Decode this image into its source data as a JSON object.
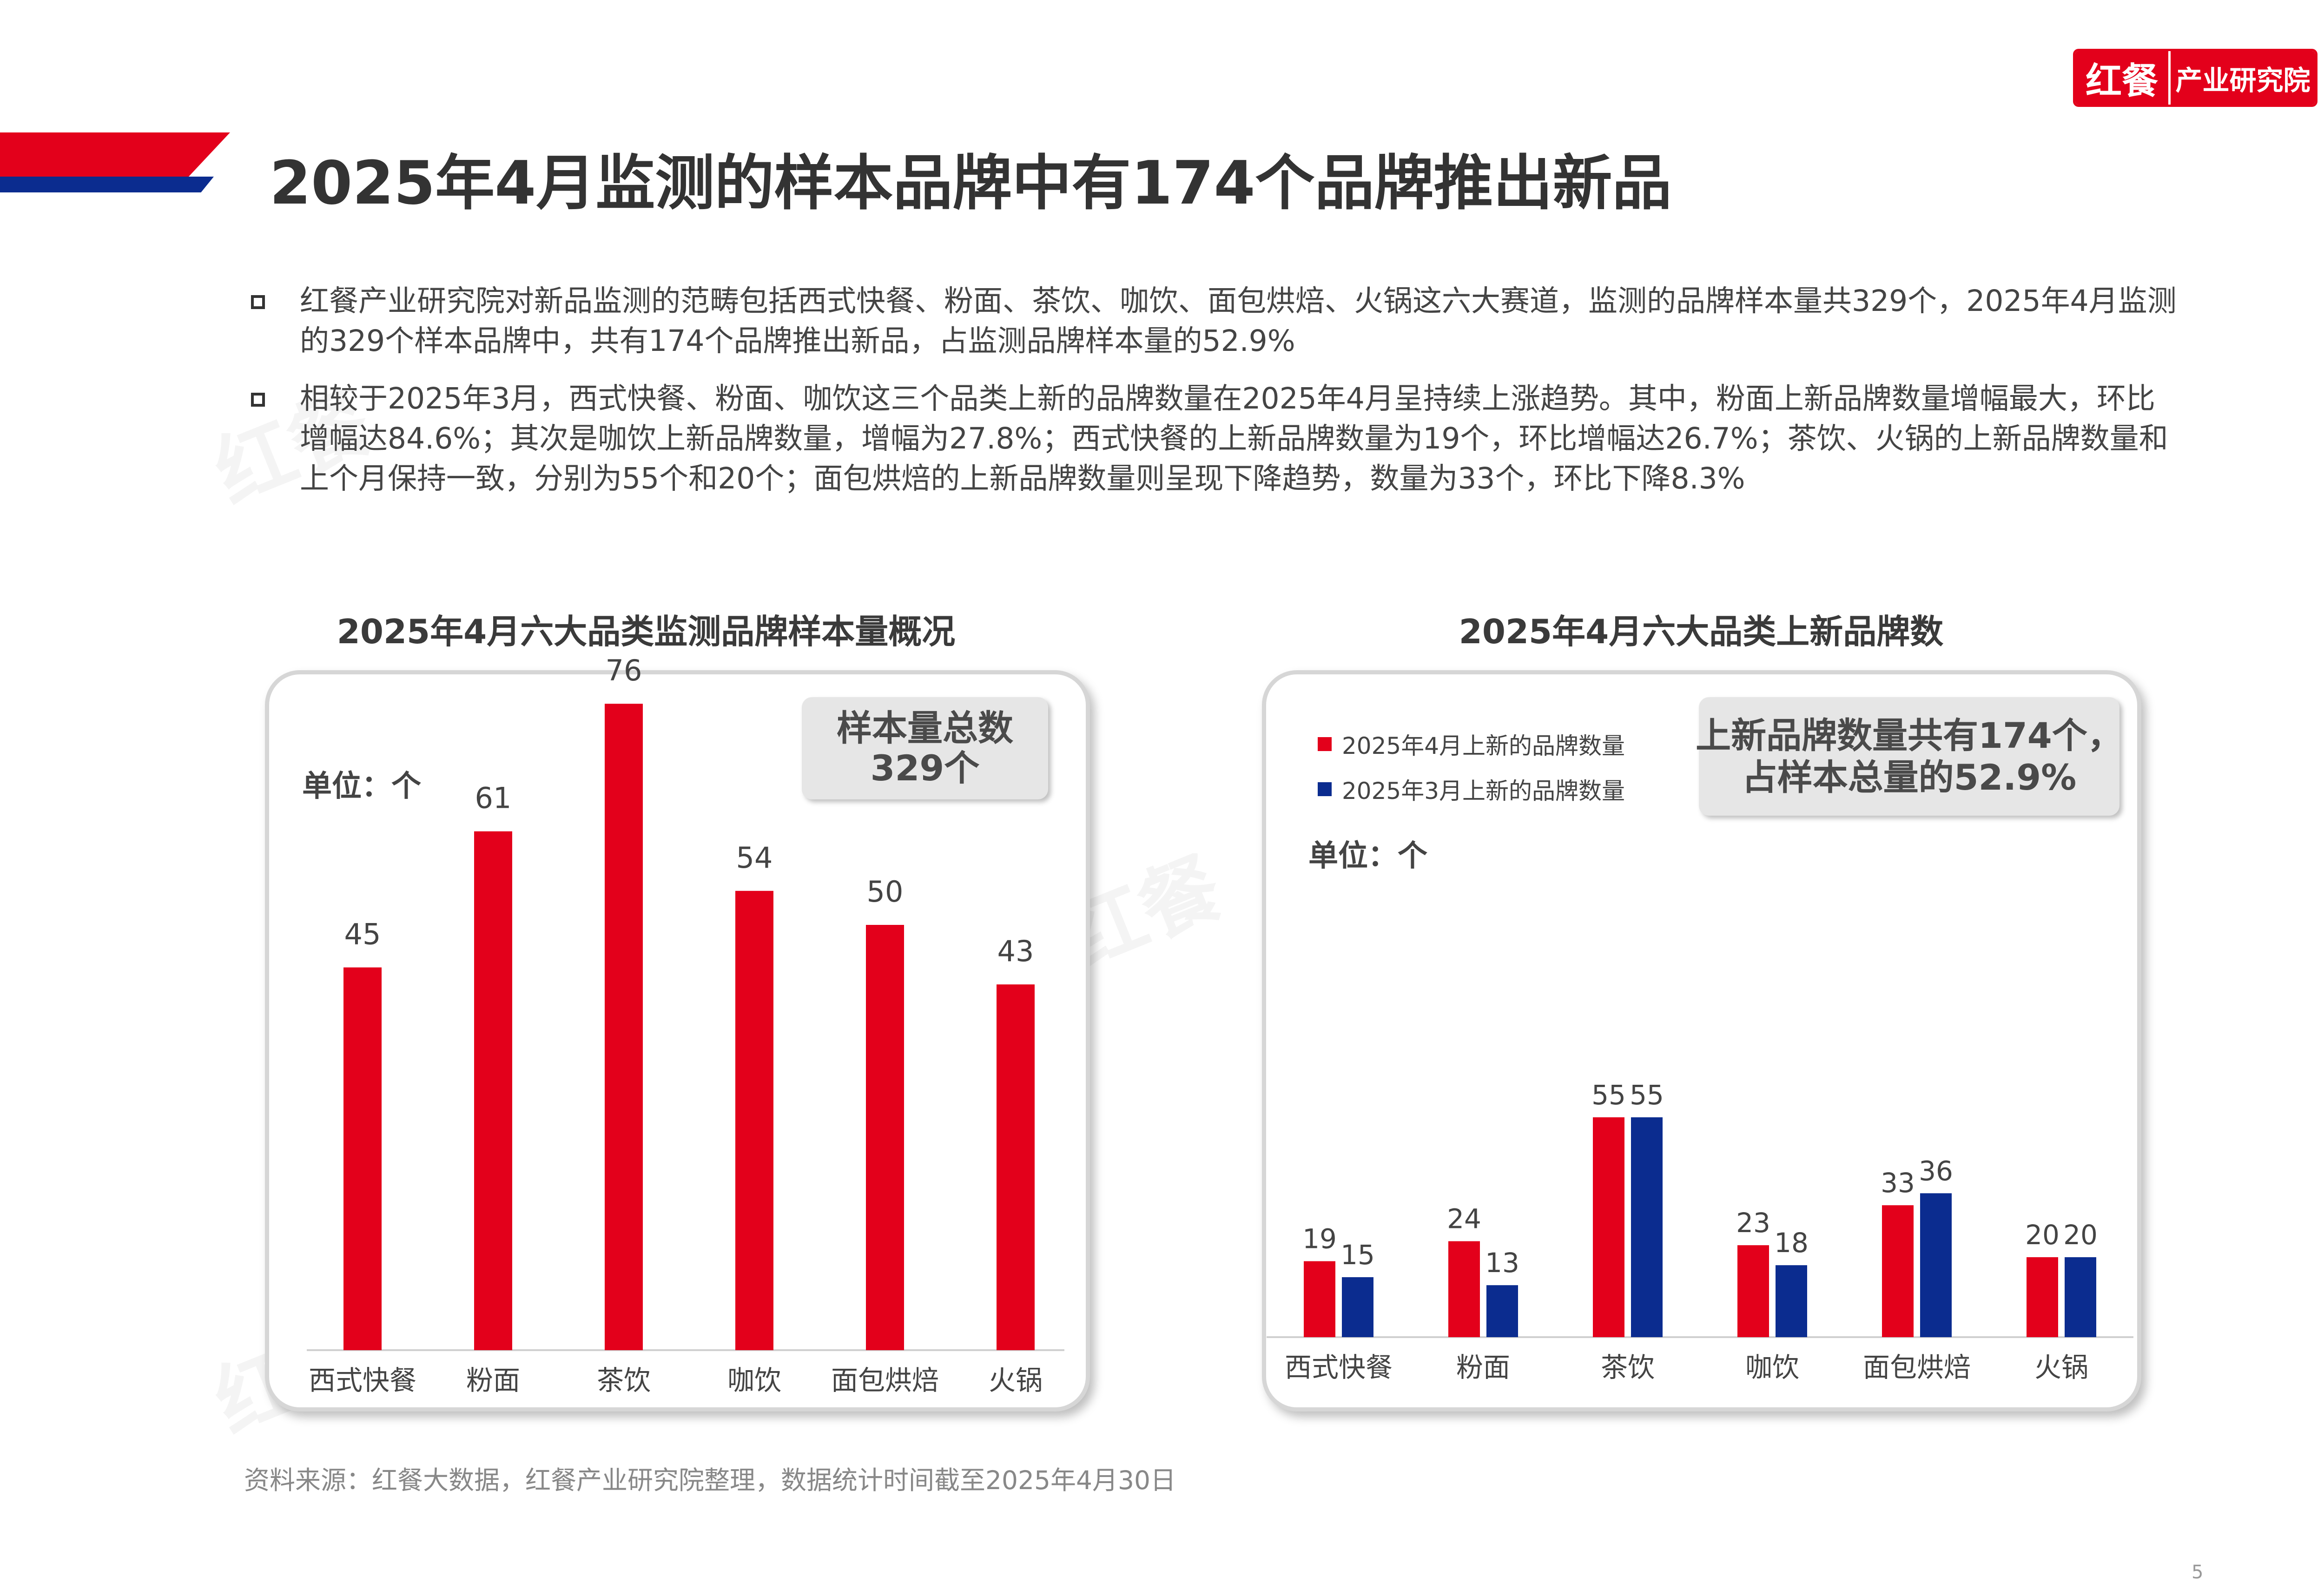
{
  "logo": {
    "left": "红餐",
    "right": "产业研究院"
  },
  "title": "2025年4月监测的样本品牌中有174个品牌推出新品",
  "bullets": [
    "红餐产业研究院对新品监测的范畴包括西式快餐、粉面、茶饮、咖饮、面包烘焙、火锅这六大赛道，监测的品牌样本量共329个，2025年4月监测的329个样本品牌中，共有174个品牌推出新品，占监测品牌样本量的52.9%",
    "相较于2025年3月，西式快餐、粉面、咖饮这三个品类上新的品牌数量在2025年4月呈持续上涨趋势。其中，粉面上新品牌数量增幅最大，环比增幅达84.6%；其次是咖饮上新品牌数量，增幅为27.8%；西式快餐的上新品牌数量为19个，环比增幅达26.7%；茶饮、火锅的上新品牌数量和上个月保持一致，分别为55个和20个；面包烘焙的上新品牌数量则呈现下降趋势，数量为33个，环比下降8.3%"
  ],
  "chart1": {
    "unit_label": "单位：个",
    "total_box": {
      "line1": "样本量总数",
      "line2": "329个"
    }
  },
  "chart2": {
    "unit_label": "单位：个",
    "summary_box": {
      "line1": "上新品牌数量共有174个，",
      "line2": "占样本总量的52.9%"
    }
  },
  "chart_data": [
    {
      "type": "bar",
      "title": "2025年4月六大品类监测品牌样本量概况",
      "categories": [
        "西式快餐",
        "粉面",
        "茶饮",
        "咖饮",
        "面包烘焙",
        "火锅"
      ],
      "values": [
        45,
        61,
        76,
        54,
        50,
        43
      ],
      "color": "#e3001b",
      "ylim": [
        0,
        100
      ],
      "grid": false
    },
    {
      "type": "bar",
      "title": "2025年4月六大品类上新品牌数",
      "categories": [
        "西式快餐",
        "粉面",
        "茶饮",
        "咖饮",
        "面包烘焙",
        "火锅"
      ],
      "series": [
        {
          "name": "2025年4月上新的品牌数量",
          "values": [
            19,
            24,
            55,
            23,
            33,
            20
          ],
          "color": "#e3001b"
        },
        {
          "name": "2025年3月上新的品牌数量",
          "values": [
            15,
            13,
            55,
            18,
            36,
            20
          ],
          "color": "#0b2c8f"
        }
      ],
      "ylim": [
        0,
        100
      ],
      "legend": "top-left",
      "grid": false
    }
  ],
  "source": "资料来源：红餐大数据，红餐产业研究院整理，数据统计时间截至2025年4月30日",
  "page_number": "5"
}
